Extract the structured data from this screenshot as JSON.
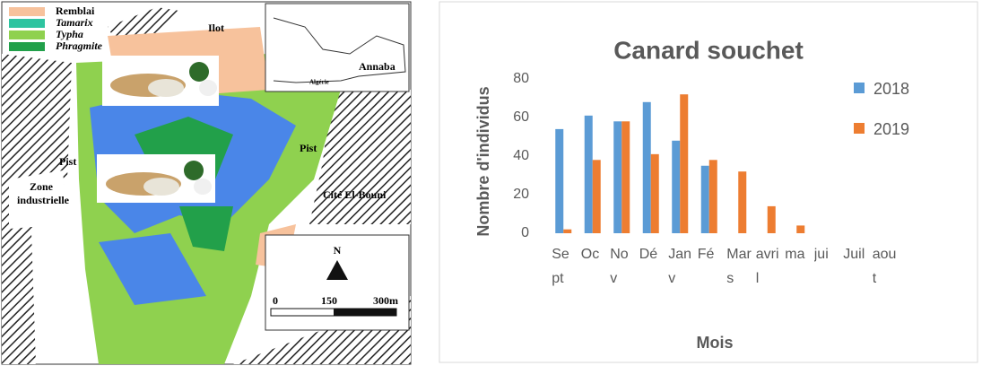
{
  "map": {
    "legend": [
      "Remblai",
      "Tamarix",
      "Typha",
      "Phragmite"
    ],
    "labels": {
      "ilot": "Ilot",
      "pist_left": "Pist",
      "pist_right": "Pist",
      "zone_1": "Zone",
      "zone_2": "industrielle",
      "cite": "Cité El-Bouni",
      "north": "N",
      "scale_0": "0",
      "scale_150": "150",
      "scale_300": "300m",
      "annaba": "Annaba",
      "algerie": "Algérie"
    }
  },
  "chart_data": {
    "type": "bar",
    "title": "Canard souchet",
    "x_label": "Mois",
    "y_label": "Nombre d'individus",
    "categories": [
      "Sept",
      "Oc",
      "Nov",
      "Dé",
      "Janv",
      "Fé",
      "Mars",
      "avril",
      "ma",
      "jui",
      "Juil",
      "aout"
    ],
    "series": [
      {
        "name": "2018",
        "color": "#5b9bd5",
        "values": [
          54,
          61,
          58,
          68,
          48,
          35,
          null,
          null,
          null,
          null,
          null,
          null
        ]
      },
      {
        "name": "2019",
        "color": "#ed7d31",
        "values": [
          2,
          38,
          58,
          41,
          72,
          38,
          32,
          14,
          4,
          null,
          null,
          null
        ]
      }
    ],
    "ylim": [
      0,
      80
    ],
    "yticks": [
      0,
      20,
      40,
      60,
      80
    ],
    "grid": false,
    "legend": "right"
  }
}
